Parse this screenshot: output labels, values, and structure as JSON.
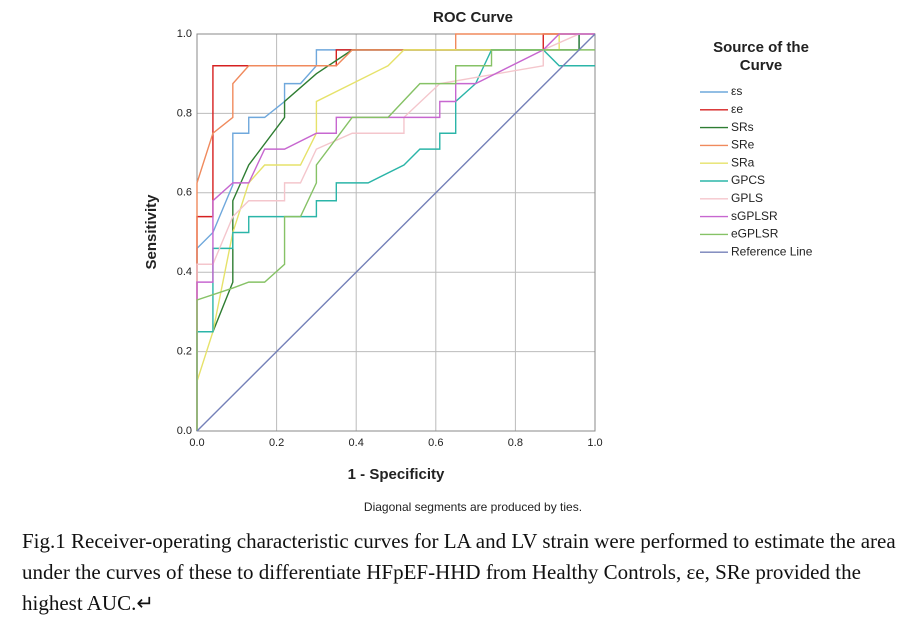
{
  "chart_data": {
    "type": "line",
    "title": "ROC Curve",
    "x_label": "1 - Specificity",
    "y_label": "Sensitivity",
    "legend_title": "Source of the Curve",
    "footnote": "Diagonal segments are produced by ties.",
    "grid": true,
    "legend": "right",
    "xlim": [
      0,
      1
    ],
    "ylim": [
      0,
      1
    ],
    "xticks": [
      {
        "value": 0,
        "label": "0.0"
      },
      {
        "value": 0.2,
        "label": "0.2"
      },
      {
        "value": 0.4,
        "label": "0.4"
      },
      {
        "value": 0.6,
        "label": "0.6"
      },
      {
        "value": 0.8,
        "label": "0.8"
      },
      {
        "value": 1,
        "label": "1.0"
      }
    ],
    "yticks": [
      {
        "value": 0,
        "label": "0.0"
      },
      {
        "value": 0.2,
        "label": "0.2"
      },
      {
        "value": 0.4,
        "label": "0.4"
      },
      {
        "value": 0.6,
        "label": "0.6"
      },
      {
        "value": 0.8,
        "label": "0.8"
      },
      {
        "value": 1,
        "label": "1.0"
      }
    ],
    "series": [
      {
        "name": "εs",
        "color": "#6fa8dc",
        "x": [
          0,
          0,
          0.04,
          0.09,
          0.09,
          0.13,
          0.13,
          0.17,
          0.22,
          0.22,
          0.26,
          0.3,
          0.3,
          0.35,
          0.96,
          0.96,
          1
        ],
        "values": [
          0,
          0.46,
          0.5,
          0.62,
          0.75,
          0.75,
          0.79,
          0.79,
          0.83,
          0.875,
          0.875,
          0.92,
          0.96,
          0.96,
          0.96,
          1,
          1
        ]
      },
      {
        "name": "εe",
        "color": "#d62020",
        "x": [
          0,
          0,
          0.04,
          0.04,
          0.35,
          0.35,
          0.87,
          0.87,
          1
        ],
        "values": [
          0,
          0.54,
          0.54,
          0.92,
          0.92,
          0.96,
          0.96,
          1,
          1
        ]
      },
      {
        "name": "SRs",
        "color": "#2e7d32",
        "x": [
          0,
          0,
          0.04,
          0.09,
          0.09,
          0.13,
          0.22,
          0.22,
          0.3,
          0.39,
          0.96,
          0.96,
          1
        ],
        "values": [
          0,
          0.25,
          0.25,
          0.375,
          0.58,
          0.67,
          0.79,
          0.83,
          0.9,
          0.96,
          0.96,
          1,
          1
        ]
      },
      {
        "name": "SRe",
        "color": "#f08a5d",
        "x": [
          0,
          0,
          0.04,
          0.09,
          0.09,
          0.13,
          0.35,
          0.39,
          0.65,
          0.65,
          1
        ],
        "values": [
          0,
          0.625,
          0.75,
          0.79,
          0.875,
          0.92,
          0.92,
          0.96,
          0.96,
          1,
          1
        ]
      },
      {
        "name": "SRa",
        "color": "#e6e26a",
        "x": [
          0,
          0,
          0.04,
          0.09,
          0.13,
          0.17,
          0.26,
          0.3,
          0.3,
          0.39,
          0.48,
          0.52,
          0.91,
          0.91,
          1
        ],
        "values": [
          0,
          0.125,
          0.25,
          0.5,
          0.625,
          0.67,
          0.67,
          0.75,
          0.83,
          0.875,
          0.92,
          0.96,
          0.96,
          1,
          1
        ]
      },
      {
        "name": "GPCS",
        "color": "#2bb5a8",
        "x": [
          0,
          0,
          0.04,
          0.04,
          0.09,
          0.09,
          0.13,
          0.13,
          0.3,
          0.3,
          0.35,
          0.35,
          0.43,
          0.52,
          0.56,
          0.61,
          0.61,
          0.65,
          0.65,
          0.7,
          0.74,
          0.87,
          0.91,
          1
        ],
        "values": [
          0,
          0.25,
          0.25,
          0.46,
          0.46,
          0.5,
          0.5,
          0.54,
          0.54,
          0.58,
          0.58,
          0.625,
          0.625,
          0.67,
          0.71,
          0.71,
          0.75,
          0.75,
          0.83,
          0.875,
          0.96,
          0.96,
          0.92,
          0.92
        ]
      },
      {
        "name": "GPLS",
        "color": "#f4c6cc",
        "x": [
          0,
          0,
          0.04,
          0.09,
          0.13,
          0.22,
          0.22,
          0.26,
          0.3,
          0.39,
          0.52,
          0.52,
          0.61,
          0.87,
          0.87,
          0.96,
          1
        ],
        "values": [
          0,
          0.42,
          0.42,
          0.54,
          0.58,
          0.58,
          0.625,
          0.625,
          0.71,
          0.75,
          0.75,
          0.79,
          0.875,
          0.92,
          0.96,
          1,
          1
        ]
      },
      {
        "name": "sGPLSR",
        "color": "#c767d0",
        "x": [
          0,
          0,
          0.04,
          0.04,
          0.09,
          0.13,
          0.17,
          0.22,
          0.3,
          0.35,
          0.35,
          0.61,
          0.61,
          0.65,
          0.65,
          0.7,
          0.87,
          0.91,
          1
        ],
        "values": [
          0,
          0.375,
          0.375,
          0.58,
          0.625,
          0.625,
          0.71,
          0.71,
          0.75,
          0.75,
          0.79,
          0.79,
          0.83,
          0.83,
          0.875,
          0.875,
          0.96,
          1,
          1
        ]
      },
      {
        "name": "eGPLSR",
        "color": "#86c266",
        "x": [
          0,
          0,
          0.09,
          0.13,
          0.17,
          0.22,
          0.22,
          0.26,
          0.3,
          0.3,
          0.39,
          0.48,
          0.56,
          0.65,
          0.65,
          0.74,
          0.74,
          1
        ],
        "values": [
          0,
          0.33,
          0.36,
          0.375,
          0.375,
          0.42,
          0.54,
          0.54,
          0.625,
          0.67,
          0.79,
          0.79,
          0.875,
          0.875,
          0.92,
          0.92,
          0.96,
          0.96
        ]
      },
      {
        "name": "Reference Line",
        "color": "#7480b8",
        "x": [
          0,
          1
        ],
        "values": [
          0,
          1
        ]
      }
    ]
  },
  "caption": "Fig.1 Receiver-operating characteristic curves for LA and LV strain were performed to estimate the area under the curves of these to differentiate HFpEF-HHD from Healthy Controls, εe, SRe provided the highest AUC.↵"
}
